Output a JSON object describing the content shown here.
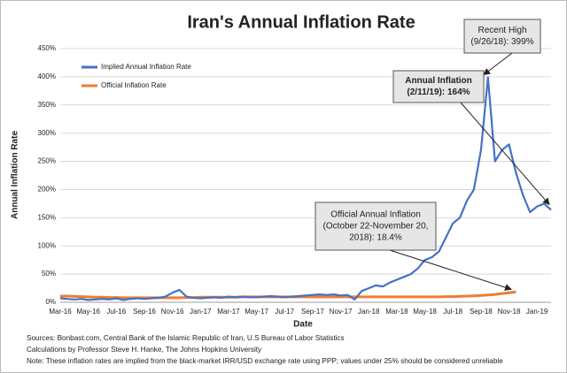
{
  "chart_data": {
    "type": "line",
    "title": "Iran's Annual Inflation Rate",
    "x_label": "Date",
    "y_label": "Annual Inflation Rate",
    "categories": [
      "Mar-16",
      null,
      null,
      null,
      "May-16",
      null,
      null,
      null,
      "Jul-16",
      null,
      null,
      null,
      "Sep-16",
      null,
      null,
      null,
      "Nov-16",
      null,
      null,
      null,
      "Jan-17",
      null,
      null,
      null,
      "Mar-17",
      null,
      null,
      null,
      "May-17",
      null,
      null,
      null,
      "Jul-17",
      null,
      null,
      null,
      "Sep-17",
      null,
      null,
      null,
      "Nov-17",
      null,
      null,
      null,
      "Jan-18",
      null,
      null,
      null,
      "Mar-18",
      null,
      null,
      null,
      "May-18",
      null,
      null,
      null,
      "Jul-18",
      null,
      null,
      null,
      "Sep-18",
      null,
      null,
      null,
      "Nov-18",
      null,
      null,
      null,
      "Jan-19",
      null,
      null
    ],
    "series": [
      {
        "name": "Implied Annual Inflation Rate",
        "color": "#4472c4",
        "values": [
          7,
          6,
          5,
          6,
          4,
          5,
          6,
          5,
          7,
          4,
          6,
          7,
          6,
          7,
          8,
          10,
          17,
          22,
          10,
          8,
          7,
          8,
          9,
          8,
          10,
          9,
          10,
          9,
          9,
          10,
          11,
          10,
          9,
          10,
          11,
          12,
          13,
          14,
          13,
          14,
          12,
          13,
          5,
          20,
          25,
          30,
          28,
          35,
          40,
          45,
          50,
          60,
          75,
          80,
          90,
          115,
          140,
          150,
          180,
          200,
          270,
          399,
          250,
          270,
          280,
          230,
          190,
          160,
          170,
          175,
          164
        ]
      },
      {
        "name": "Official Inflation Rate",
        "color": "#ed7d31",
        "values": [
          11,
          11,
          10.5,
          10,
          9.5,
          9,
          9,
          8.5,
          8.5,
          8,
          8,
          8,
          8,
          8,
          8,
          8,
          8,
          8,
          8.5,
          8.5,
          9,
          9,
          9,
          9,
          9,
          9,
          9.5,
          9.5,
          9.5,
          9.5,
          9.5,
          9.5,
          9.5,
          9.5,
          9.5,
          9.5,
          9.5,
          9.5,
          9.5,
          9.5,
          9.5,
          9.5,
          9.5,
          9.5,
          9.5,
          9.5,
          9.5,
          9.5,
          9.5,
          9.5,
          9.5,
          9.5,
          9.5,
          9.5,
          9.5,
          10,
          10,
          10.5,
          11,
          11.5,
          12,
          13,
          14,
          15.5,
          17,
          18.4,
          null,
          null,
          null,
          null,
          null
        ]
      }
    ],
    "ylim": [
      0,
      450
    ],
    "yticks": [
      {
        "value": 0,
        "label": "0%"
      },
      {
        "value": 50,
        "label": "50%"
      },
      {
        "value": 100,
        "label": "100%"
      },
      {
        "value": 150,
        "label": "150%"
      },
      {
        "value": 200,
        "label": "200%"
      },
      {
        "value": 250,
        "label": "250%"
      },
      {
        "value": 300,
        "label": "300%"
      },
      {
        "value": 350,
        "label": "350%"
      },
      {
        "value": 400,
        "label": "400%"
      },
      {
        "value": 450,
        "label": "450%"
      }
    ],
    "grid": true,
    "legend": "upper-left",
    "annotations": [
      {
        "lines": [
          "Recent High",
          "(9/26/18): 399%"
        ]
      },
      {
        "lines": [
          "Annual Inflation",
          "(2/11/19): 164%"
        ]
      },
      {
        "lines": [
          "Official Annual Inflation",
          "(October 22-November 20,",
          "2018): 18.4%"
        ]
      }
    ],
    "notes": [
      "Sources: Bonbast.com, Central Bank of the Islamic Republic of Iran, U.S Bureau of Labor Statistics",
      "Calculations by Professor Steve H. Hanke, The Johns Hopkins University",
      "Note: These inflation rates are implied from the black-market IRR/USD exchange rate using PPP; values under 25% should be considered unreliable"
    ]
  }
}
